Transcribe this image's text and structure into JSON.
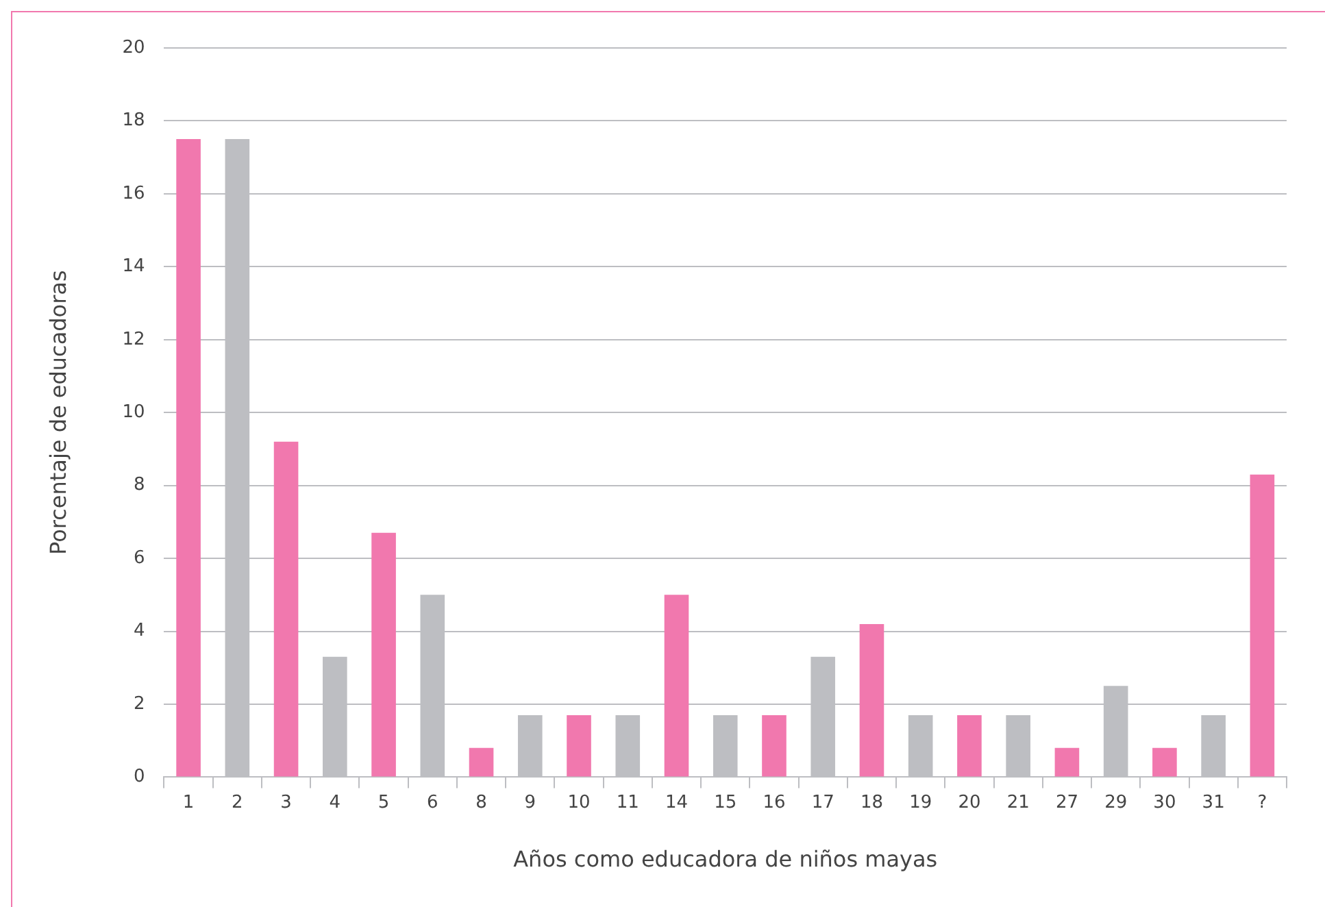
{
  "chart_data": {
    "type": "bar",
    "xlabel": "Años como educadora de niños mayas",
    "ylabel": "Porcentaje de educadoras",
    "categories": [
      "1",
      "2",
      "3",
      "4",
      "5",
      "6",
      "8",
      "9",
      "10",
      "11",
      "14",
      "15",
      "16",
      "17",
      "18",
      "19",
      "20",
      "21",
      "27",
      "29",
      "30",
      "31",
      "?"
    ],
    "values": [
      17.5,
      17.5,
      9.2,
      3.3,
      6.7,
      5.0,
      0.8,
      1.7,
      1.7,
      1.7,
      5.0,
      1.7,
      1.7,
      3.3,
      4.2,
      1.7,
      1.7,
      1.7,
      0.8,
      2.5,
      0.8,
      1.7,
      8.3
    ],
    "colors": [
      "#f178ae",
      "#bdbec2",
      "#f178ae",
      "#bdbec2",
      "#f178ae",
      "#bdbec2",
      "#f178ae",
      "#bdbec2",
      "#f178ae",
      "#bdbec2",
      "#f178ae",
      "#bdbec2",
      "#f178ae",
      "#bdbec2",
      "#f178ae",
      "#bdbec2",
      "#f178ae",
      "#bdbec2",
      "#f178ae",
      "#bdbec2",
      "#f178ae",
      "#bdbec2",
      "#f178ae"
    ],
    "ylim": [
      0,
      20
    ],
    "yticks": [
      0,
      2,
      4,
      6,
      8,
      10,
      12,
      14,
      16,
      18,
      20
    ],
    "grid": "y",
    "legend": false
  }
}
